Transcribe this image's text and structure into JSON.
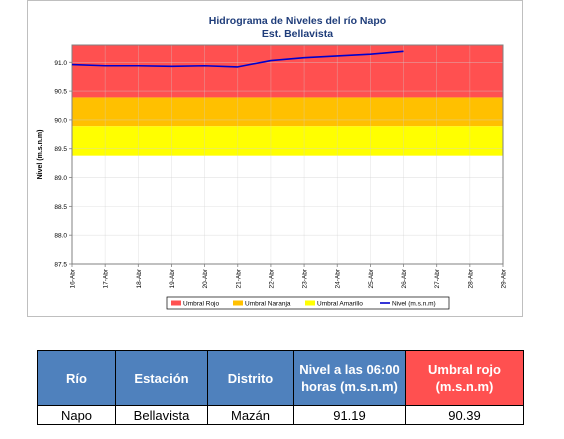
{
  "chart_data": {
    "type": "line",
    "title": "Hidrograma de Niveles del río Napo",
    "subtitle": "Est. Bellavista",
    "ylabel": "Nivel (m.s.n.m)",
    "xlabel": "",
    "ylim": [
      87.5,
      91.3
    ],
    "yticks": [
      "87.5",
      "88.0",
      "88.5",
      "89.0",
      "89.5",
      "90.0",
      "90.5",
      "91.0"
    ],
    "categories": [
      "16-Abr",
      "17-Abr",
      "18-Abr",
      "19-Abr",
      "20-Abr",
      "21-Abr",
      "22-Abr",
      "23-Abr",
      "24-Abr",
      "25-Abr",
      "26-Abr",
      "27-Abr",
      "28-Abr",
      "29-Abr"
    ],
    "thresholds": [
      {
        "name": "Umbral Rojo",
        "from": 90.39,
        "to": 91.3,
        "color": "#ff5050"
      },
      {
        "name": "Umbral Naranja",
        "from": 89.89,
        "to": 90.39,
        "color": "#ffc000"
      },
      {
        "name": "Umbral Amarillo",
        "from": 89.38,
        "to": 89.89,
        "color": "#ffff00"
      }
    ],
    "series": [
      {
        "name": "Nivel (m.s.n.m)",
        "color": "#0000cc",
        "x": [
          "16-Abr",
          "17-Abr",
          "18-Abr",
          "19-Abr",
          "20-Abr",
          "21-Abr",
          "22-Abr",
          "23-Abr",
          "24-Abr",
          "25-Abr",
          "26-Abr"
        ],
        "values": [
          90.96,
          90.94,
          90.94,
          90.93,
          90.94,
          90.92,
          91.03,
          91.08,
          91.11,
          91.14,
          91.19
        ]
      }
    ],
    "legend": [
      "Umbral Rojo",
      "Umbral Naranja",
      "Umbral Amarillo",
      "Nivel (m.s.n.m)"
    ],
    "legend_position": "bottom",
    "grid": true
  },
  "table": {
    "headers": [
      {
        "text": "Río",
        "color": "#4f81bd"
      },
      {
        "text": "Estación",
        "color": "#4f81bd"
      },
      {
        "text": "Distrito",
        "color": "#4f81bd"
      },
      {
        "text": "Nivel a las 06:00 horas (m.s.n.m)",
        "color": "#4f81bd"
      },
      {
        "text": "Umbral rojo (m.s.n.m)",
        "color": "#ff5050"
      }
    ],
    "row": [
      "Napo",
      "Bellavista",
      "Mazán",
      "91.19",
      "90.39"
    ]
  }
}
